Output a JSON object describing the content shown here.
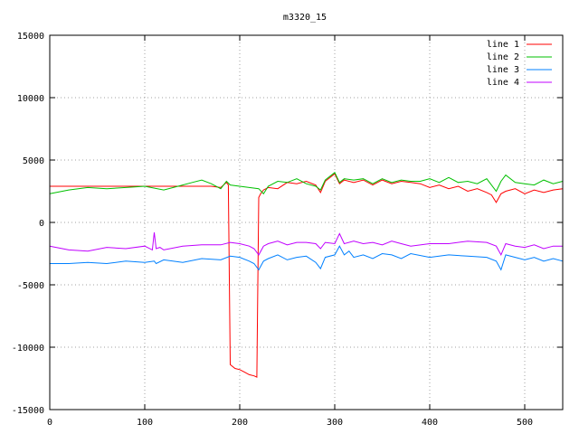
{
  "chart_data": {
    "type": "line",
    "title": "m3320_15",
    "xlabel": "",
    "ylabel": "",
    "xlim": [
      0,
      540
    ],
    "ylim": [
      -15000,
      15000
    ],
    "x_ticks": [
      0,
      100,
      200,
      300,
      400,
      500
    ],
    "y_ticks": [
      -15000,
      -10000,
      -5000,
      0,
      5000,
      10000,
      15000
    ],
    "grid": true,
    "legend_position": "top-right",
    "series": [
      {
        "name": "line 1",
        "color": "#ff0000",
        "x": [
          0,
          60,
          120,
          170,
          180,
          186,
          188,
          190,
          195,
          200,
          205,
          210,
          215,
          218,
          220,
          222,
          225,
          230,
          240,
          250,
          260,
          270,
          280,
          285,
          290,
          300,
          305,
          310,
          320,
          330,
          340,
          350,
          360,
          370,
          380,
          390,
          400,
          410,
          420,
          430,
          440,
          450,
          460,
          465,
          470,
          475,
          480,
          490,
          500,
          510,
          520,
          530,
          540
        ],
        "y": [
          2900,
          2900,
          2900,
          2900,
          2800,
          3200,
          3000,
          -11400,
          -11700,
          -11800,
          -12000,
          -12200,
          -12300,
          -12400,
          2000,
          2300,
          2600,
          2800,
          2700,
          3200,
          3100,
          3300,
          3000,
          2400,
          3300,
          3900,
          3100,
          3400,
          3200,
          3400,
          3000,
          3400,
          3100,
          3300,
          3200,
          3100,
          2800,
          3000,
          2700,
          2900,
          2500,
          2700,
          2400,
          2200,
          1600,
          2300,
          2500,
          2700,
          2300,
          2600,
          2400,
          2600,
          2700
        ]
      },
      {
        "name": "line 2",
        "color": "#00c000",
        "x": [
          0,
          20,
          40,
          60,
          80,
          100,
          120,
          140,
          150,
          160,
          170,
          180,
          186,
          190,
          200,
          210,
          220,
          225,
          230,
          240,
          250,
          260,
          270,
          280,
          285,
          290,
          300,
          305,
          310,
          320,
          330,
          340,
          350,
          360,
          370,
          380,
          390,
          400,
          410,
          420,
          430,
          440,
          450,
          460,
          470,
          475,
          480,
          490,
          500,
          510,
          520,
          530,
          540
        ],
        "y": [
          2300,
          2600,
          2800,
          2700,
          2800,
          2900,
          2600,
          3000,
          3200,
          3400,
          3100,
          2700,
          3300,
          3000,
          2900,
          2800,
          2700,
          2300,
          2900,
          3300,
          3200,
          3500,
          3100,
          2900,
          2600,
          3400,
          4000,
          3200,
          3500,
          3400,
          3500,
          3100,
          3500,
          3200,
          3400,
          3300,
          3300,
          3500,
          3200,
          3600,
          3200,
          3300,
          3100,
          3500,
          2500,
          3300,
          3800,
          3200,
          3100,
          3000,
          3400,
          3100,
          3300
        ]
      },
      {
        "name": "line 3",
        "color": "#0080ff",
        "x": [
          0,
          20,
          40,
          60,
          80,
          100,
          110,
          112,
          120,
          140,
          160,
          180,
          190,
          200,
          210,
          215,
          220,
          225,
          230,
          240,
          250,
          260,
          270,
          280,
          285,
          290,
          300,
          305,
          310,
          315,
          320,
          330,
          340,
          350,
          360,
          370,
          380,
          400,
          420,
          440,
          460,
          470,
          475,
          480,
          490,
          500,
          510,
          520,
          530,
          540
        ],
        "y": [
          -3300,
          -3300,
          -3200,
          -3300,
          -3100,
          -3200,
          -3100,
          -3300,
          -3000,
          -3200,
          -2900,
          -3000,
          -2700,
          -2800,
          -3100,
          -3300,
          -3800,
          -3100,
          -2900,
          -2600,
          -3000,
          -2800,
          -2700,
          -3200,
          -3700,
          -2800,
          -2600,
          -1900,
          -2600,
          -2300,
          -2800,
          -2600,
          -2900,
          -2500,
          -2600,
          -2900,
          -2500,
          -2800,
          -2600,
          -2700,
          -2800,
          -3100,
          -3800,
          -2600,
          -2800,
          -3000,
          -2800,
          -3100,
          -2900,
          -3100
        ]
      },
      {
        "name": "line 4",
        "color": "#c000ff",
        "x": [
          0,
          20,
          40,
          60,
          80,
          100,
          108,
          110,
          112,
          116,
          120,
          140,
          160,
          180,
          190,
          200,
          210,
          215,
          220,
          225,
          230,
          240,
          250,
          260,
          270,
          280,
          285,
          290,
          300,
          305,
          310,
          320,
          330,
          340,
          350,
          360,
          370,
          380,
          400,
          420,
          440,
          460,
          470,
          475,
          480,
          490,
          500,
          510,
          520,
          530,
          540
        ],
        "y": [
          -1900,
          -2200,
          -2300,
          -2000,
          -2100,
          -1900,
          -2200,
          -800,
          -2100,
          -2000,
          -2200,
          -1900,
          -1800,
          -1800,
          -1600,
          -1700,
          -1900,
          -2100,
          -2600,
          -1900,
          -1700,
          -1500,
          -1800,
          -1600,
          -1600,
          -1700,
          -2100,
          -1600,
          -1700,
          -900,
          -1700,
          -1500,
          -1700,
          -1600,
          -1800,
          -1500,
          -1700,
          -1900,
          -1700,
          -1700,
          -1500,
          -1600,
          -1900,
          -2600,
          -1700,
          -1900,
          -2000,
          -1800,
          -2100,
          -1900,
          -1900
        ]
      }
    ]
  }
}
